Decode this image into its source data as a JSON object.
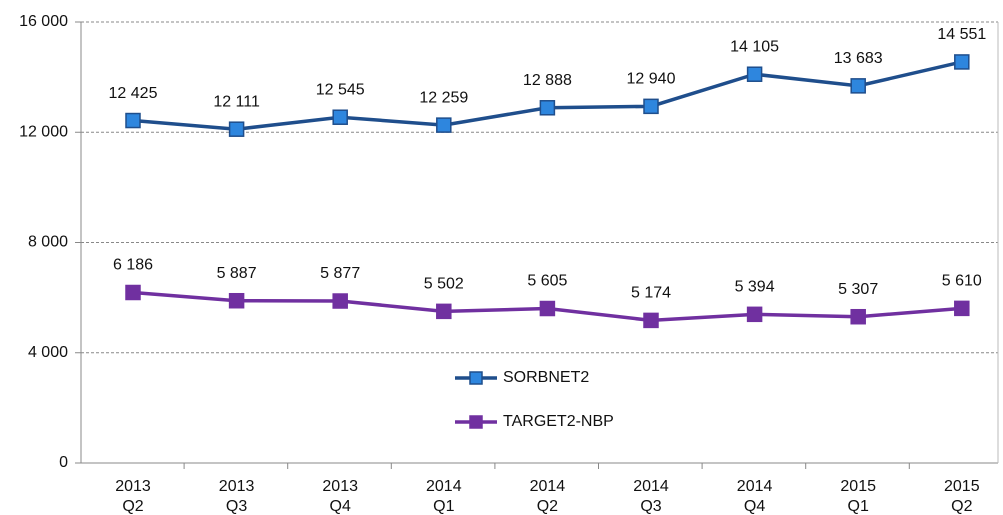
{
  "chart_data": {
    "type": "line",
    "categories": [
      "2013 Q2",
      "2013 Q3",
      "2013 Q4",
      "2014 Q1",
      "2014 Q2",
      "2014 Q3",
      "2014 Q4",
      "2015 Q1",
      "2015 Q2"
    ],
    "series": [
      {
        "name": "SORBNET2",
        "color": "#1f4e8c",
        "marker_color": "#2e86de",
        "values": [
          12425,
          12111,
          12545,
          12259,
          12888,
          12940,
          14105,
          13683,
          14551
        ],
        "value_labels": [
          "12 425",
          "12 111",
          "12 545",
          "12 259",
          "12 888",
          "12 940",
          "14 105",
          "13 683",
          "14 551"
        ]
      },
      {
        "name": "TARGET2-NBP",
        "color": "#7030a0",
        "marker_color": "#7030a0",
        "values": [
          6186,
          5887,
          5877,
          5502,
          5605,
          5174,
          5394,
          5307,
          5610
        ],
        "value_labels": [
          "6 186",
          "5 887",
          "5 877",
          "5 502",
          "5 605",
          "5 174",
          "5 394",
          "5 307",
          "5 610"
        ]
      }
    ],
    "ylim": [
      0,
      16000
    ],
    "yticks": [
      {
        "value": 0,
        "label": "0"
      },
      {
        "value": 4000,
        "label": "4 000"
      },
      {
        "value": 8000,
        "label": "8 000"
      },
      {
        "value": 12000,
        "label": "12 000"
      },
      {
        "value": 16000,
        "label": "16 000"
      }
    ],
    "grid": true,
    "legend": "center"
  }
}
